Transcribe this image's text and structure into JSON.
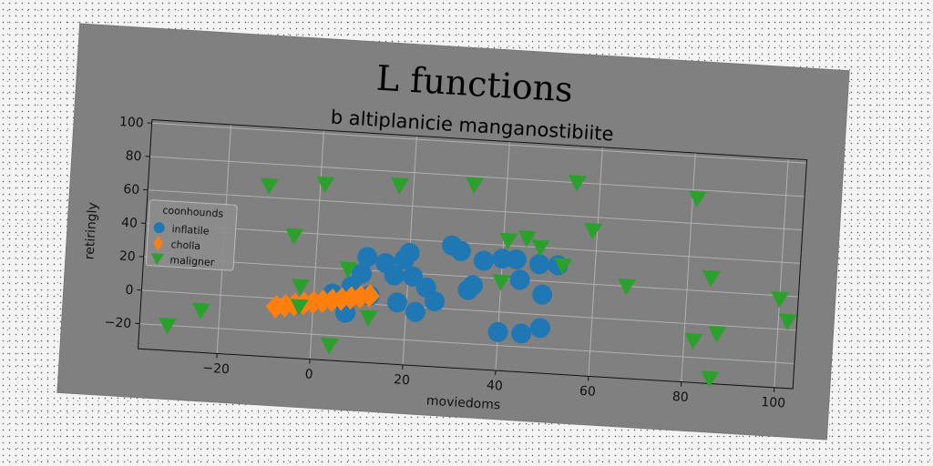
{
  "chart_data": {
    "type": "scatter",
    "title": "L functions",
    "subtitle": "b altiplanicie manganostibiite",
    "xlabel": "moviedoms",
    "ylabel": "retiringly",
    "xlim": [
      -37,
      104
    ],
    "ylim": [
      -35,
      102
    ],
    "xticks": [
      -20,
      0,
      20,
      40,
      60,
      80,
      100
    ],
    "xtick_labels": [
      "−20",
      "0",
      "20",
      "40",
      "60",
      "80",
      "100"
    ],
    "yticks": [
      -20,
      0,
      20,
      40,
      60,
      80,
      100
    ],
    "ytick_labels": [
      "−20",
      "0",
      "20",
      "40",
      "60",
      "80",
      "100"
    ],
    "grid": true,
    "legend": {
      "title": "coonhounds",
      "placement": "center-left"
    },
    "series": [
      {
        "name": "inflatile",
        "color": "#1f77b4",
        "marker": "circle",
        "points": [
          [
            4,
            5
          ],
          [
            6,
            2
          ],
          [
            7,
            -6
          ],
          [
            8,
            10
          ],
          [
            10,
            18
          ],
          [
            11,
            28
          ],
          [
            12,
            5
          ],
          [
            15,
            25
          ],
          [
            17,
            18
          ],
          [
            18,
            2
          ],
          [
            19,
            28
          ],
          [
            20,
            32
          ],
          [
            21,
            18
          ],
          [
            22,
            -3
          ],
          [
            24,
            12
          ],
          [
            26,
            4
          ],
          [
            29,
            38
          ],
          [
            31,
            35
          ],
          [
            33,
            12
          ],
          [
            34,
            15
          ],
          [
            36,
            30
          ],
          [
            40,
            32
          ],
          [
            43,
            32
          ],
          [
            44,
            20
          ],
          [
            48,
            30
          ],
          [
            49,
            12
          ],
          [
            52,
            30
          ],
          [
            40,
            -12
          ],
          [
            45,
            -12
          ],
          [
            49,
            -8
          ]
        ]
      },
      {
        "name": "cholla",
        "color": "#ff7f0e",
        "marker": "thin_diamond",
        "points": [
          [
            -8,
            -5
          ],
          [
            -6,
            -4
          ],
          [
            -4,
            -3
          ],
          [
            -2,
            -2
          ],
          [
            0,
            -1
          ],
          [
            2,
            0
          ],
          [
            4,
            1
          ],
          [
            6,
            2
          ],
          [
            8,
            3
          ],
          [
            10,
            4
          ],
          [
            12,
            5
          ]
        ]
      },
      {
        "name": "maligner",
        "color": "#2ca02c",
        "marker": "triangle_down",
        "points": [
          [
            -31,
            -20
          ],
          [
            -24,
            -10
          ],
          [
            -11,
            67
          ],
          [
            -5,
            38
          ],
          [
            -3,
            8
          ],
          [
            -3,
            -4
          ],
          [
            1,
            70
          ],
          [
            4,
            -26
          ],
          [
            7,
            20
          ],
          [
            12,
            -8
          ],
          [
            17,
            72
          ],
          [
            33,
            75
          ],
          [
            40,
            18
          ],
          [
            41,
            43
          ],
          [
            45,
            45
          ],
          [
            48,
            40
          ],
          [
            53,
            30
          ],
          [
            55,
            80
          ],
          [
            59,
            52
          ],
          [
            67,
            20
          ],
          [
            81,
            75
          ],
          [
            82,
            -10
          ],
          [
            85,
            28
          ],
          [
            86,
            -32
          ],
          [
            87,
            -5
          ],
          [
            100,
            18
          ],
          [
            102,
            5
          ]
        ]
      }
    ]
  }
}
